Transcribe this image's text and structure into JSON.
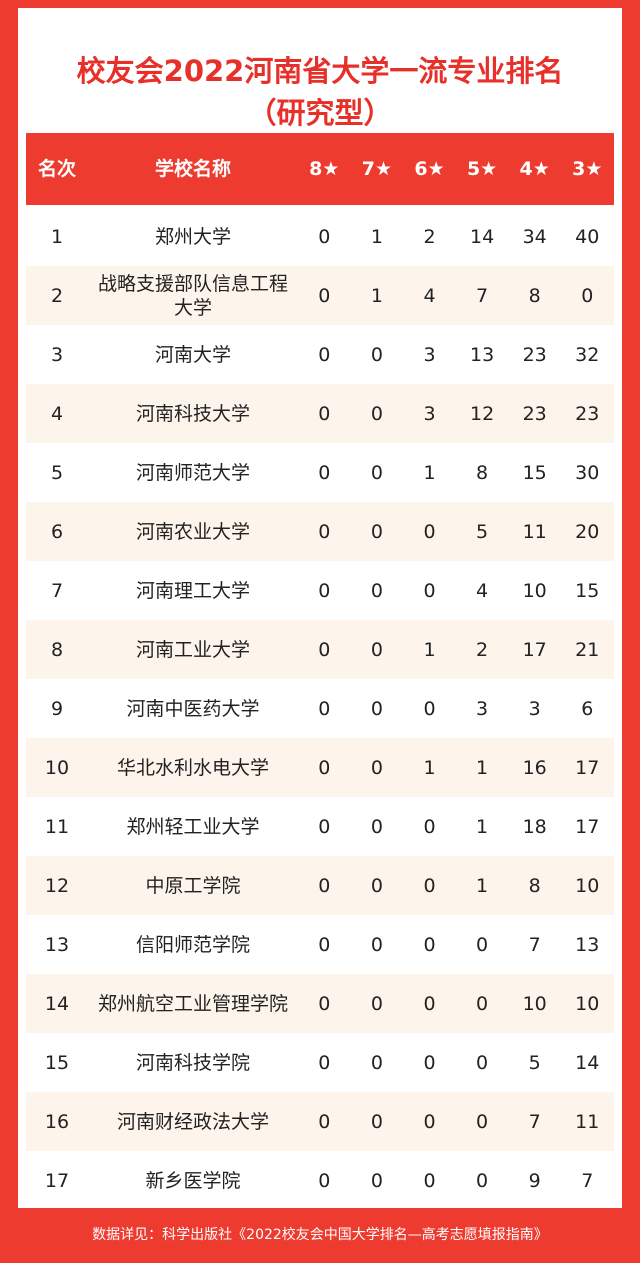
{
  "header": {
    "title": [
      "校友会2022河南省大学一流专业排名",
      "（研究型）"
    ]
  },
  "table": {
    "columns": [
      "名次",
      "学校名称",
      "8★",
      "7★",
      "6★",
      "5★",
      "4★",
      "3★"
    ],
    "rows": [
      [
        1,
        "郑州大学",
        0,
        1,
        2,
        14,
        34,
        40
      ],
      [
        2,
        "战略支援部队信息工程大学",
        0,
        1,
        4,
        7,
        8,
        0
      ],
      [
        3,
        "河南大学",
        0,
        0,
        3,
        13,
        23,
        32
      ],
      [
        4,
        "河南科技大学",
        0,
        0,
        3,
        12,
        23,
        23
      ],
      [
        5,
        "河南师范大学",
        0,
        0,
        1,
        8,
        15,
        30
      ],
      [
        6,
        "河南农业大学",
        0,
        0,
        0,
        5,
        11,
        20
      ],
      [
        7,
        "河南理工大学",
        0,
        0,
        0,
        4,
        10,
        15
      ],
      [
        8,
        "河南工业大学",
        0,
        0,
        1,
        2,
        17,
        21
      ],
      [
        9,
        "河南中医药大学",
        0,
        0,
        0,
        3,
        3,
        6
      ],
      [
        10,
        "华北水利水电大学",
        0,
        0,
        1,
        1,
        16,
        17
      ],
      [
        11,
        "郑州轻工业大学",
        0,
        0,
        0,
        1,
        18,
        17
      ],
      [
        12,
        "中原工学院",
        0,
        0,
        0,
        1,
        8,
        10
      ],
      [
        13,
        "信阳师范学院",
        0,
        0,
        0,
        0,
        7,
        13
      ],
      [
        14,
        "郑州航空工业管理学院",
        0,
        0,
        0,
        0,
        10,
        10
      ],
      [
        15,
        "河南科技学院",
        0,
        0,
        0,
        0,
        5,
        14
      ],
      [
        16,
        "河南财经政法大学",
        0,
        0,
        0,
        0,
        7,
        11
      ],
      [
        17,
        "新乡医学院",
        0,
        0,
        0,
        0,
        9,
        7
      ]
    ]
  },
  "footer": {
    "source": "数据详见：科学出版社《2022校友会中国大学排名—高考志愿填报指南》"
  }
}
